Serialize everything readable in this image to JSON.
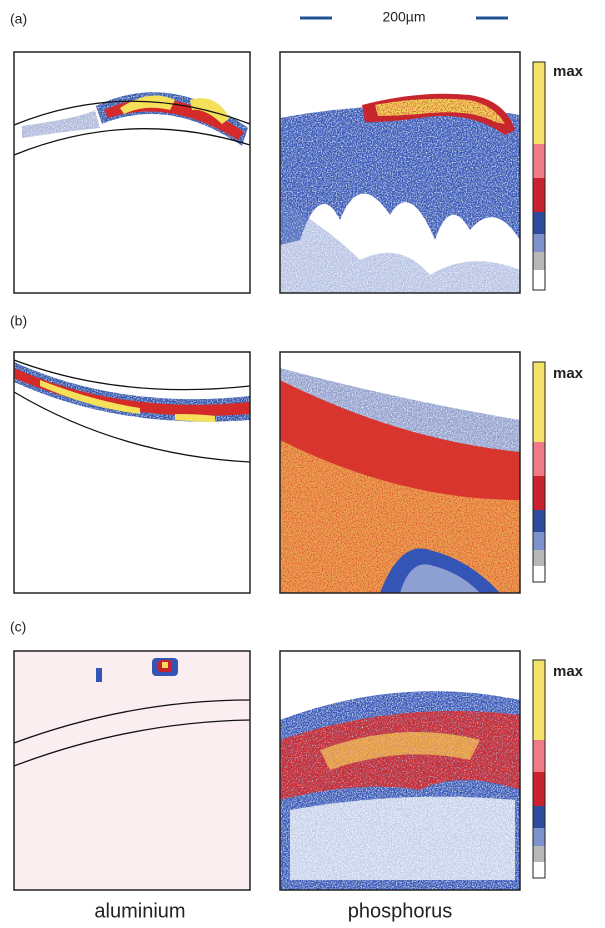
{
  "scale_bar": "200µm",
  "panels": [
    {
      "label": "(a)",
      "scale_label": "max"
    },
    {
      "label": "(b)",
      "scale_label": "max"
    },
    {
      "label": "(c)",
      "scale_label": "max"
    }
  ],
  "columns": [
    "aluminium",
    "phosphorus"
  ]
}
